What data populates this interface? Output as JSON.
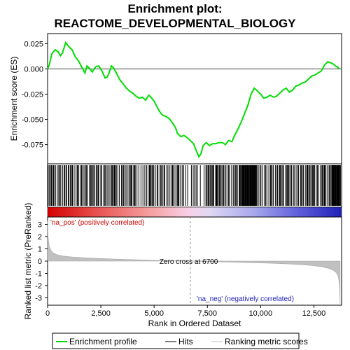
{
  "title_line1": "Enrichment plot:",
  "title_line2": "REACTOME_DEVELOPMENTAL_BIOLOGY",
  "chart_data": {
    "type": "line",
    "x_range": [
      0,
      13800
    ],
    "x_ticks": [
      0,
      2500,
      5000,
      7500,
      10000,
      12500
    ],
    "x_tick_labels": [
      "0",
      "2,500",
      "5,000",
      "7,500",
      "10,000",
      "12,500"
    ],
    "xlabel": "Rank in Ordered Dataset",
    "es_panel": {
      "ylabel": "Enrichment score (ES)",
      "ylim": [
        -0.094,
        0.035
      ],
      "y_ticks": [
        0.025,
        0.0,
        -0.025,
        -0.05,
        -0.075
      ],
      "y_tick_labels": [
        "0.025",
        "0.000",
        "-0.025",
        "-0.050",
        "-0.075"
      ],
      "series": [
        {
          "name": "Enrichment profile",
          "color": "#00dd00",
          "x": [
            0,
            80,
            200,
            350,
            500,
            600,
            700,
            850,
            1000,
            1150,
            1300,
            1450,
            1600,
            1750,
            1850,
            1950,
            2100,
            2250,
            2400,
            2550,
            2700,
            2800,
            2900,
            3000,
            3100,
            3250,
            3400,
            3550,
            3700,
            3850,
            4000,
            4150,
            4300,
            4450,
            4600,
            4750,
            4850,
            5000,
            5100,
            5250,
            5400,
            5550,
            5700,
            5850,
            6000,
            6100,
            6250,
            6400,
            6550,
            6700,
            6850,
            7000,
            7100,
            7200,
            7300,
            7450,
            7600,
            7750,
            7900,
            8050,
            8200,
            8350,
            8500,
            8650,
            8800,
            8950,
            9100,
            9250,
            9400,
            9550,
            9700,
            9850,
            10000,
            10150,
            10300,
            10450,
            10600,
            10750,
            10900,
            11050,
            11200,
            11350,
            11500,
            11650,
            11800,
            11950,
            12100,
            12250,
            12400,
            12550,
            12700,
            12850,
            13000,
            13150,
            13300,
            13400,
            13500,
            13600,
            13700
          ],
          "y": [
            0.0,
            0.004,
            0.015,
            0.019,
            0.017,
            0.013,
            0.016,
            0.026,
            0.022,
            0.019,
            0.012,
            0.008,
            0.002,
            -0.004,
            0.003,
            0.001,
            -0.003,
            0.002,
            0.003,
            -0.002,
            -0.009,
            -0.008,
            -0.003,
            0.003,
            0.001,
            -0.005,
            -0.011,
            -0.015,
            -0.019,
            -0.022,
            -0.024,
            -0.027,
            -0.029,
            -0.028,
            -0.031,
            -0.026,
            -0.028,
            -0.032,
            -0.036,
            -0.042,
            -0.046,
            -0.047,
            -0.049,
            -0.053,
            -0.058,
            -0.064,
            -0.067,
            -0.066,
            -0.068,
            -0.071,
            -0.074,
            -0.082,
            -0.087,
            -0.084,
            -0.076,
            -0.073,
            -0.076,
            -0.074,
            -0.074,
            -0.073,
            -0.073,
            -0.075,
            -0.071,
            -0.072,
            -0.065,
            -0.059,
            -0.052,
            -0.044,
            -0.036,
            -0.025,
            -0.019,
            -0.022,
            -0.025,
            -0.029,
            -0.028,
            -0.026,
            -0.028,
            -0.027,
            -0.024,
            -0.021,
            -0.019,
            -0.023,
            -0.021,
            -0.017,
            -0.016,
            -0.014,
            -0.013,
            -0.01,
            -0.007,
            -0.006,
            -0.004,
            -0.002,
            0.004,
            0.007,
            0.006,
            0.005,
            0.003,
            0.002,
            0.0
          ]
        }
      ]
    },
    "hits_panel": {
      "name": "Hits",
      "gradient_labels": [
        "'na_pos' (positively correlated)",
        "'na_neg' (negatively correlated)"
      ]
    },
    "metric_panel": {
      "name": "Ranking metric scores",
      "ylabel": "Ranked list metric (PreRanked)",
      "ylim": [
        -3.6,
        3.6
      ],
      "y_ticks": [
        3,
        2,
        1,
        0,
        -1,
        -2,
        -3
      ],
      "y_tick_labels": [
        "3",
        "2",
        "1",
        "0",
        "-1",
        "-2",
        "-3"
      ],
      "zero_cross_rank": 6700,
      "zero_cross_label": "Zero cross at 6700",
      "x": [
        0,
        30,
        80,
        150,
        250,
        400,
        600,
        900,
        1300,
        2000,
        3000,
        4000,
        5000,
        6000,
        6700,
        7500,
        8500,
        9500,
        10500,
        11500,
        12000,
        12500,
        12900,
        13200,
        13400,
        13550,
        13650,
        13700,
        13730
      ],
      "y": [
        3.3,
        1.9,
        1.2,
        0.9,
        0.7,
        0.55,
        0.45,
        0.38,
        0.32,
        0.25,
        0.18,
        0.12,
        0.07,
        0.03,
        0.0,
        -0.04,
        -0.08,
        -0.13,
        -0.18,
        -0.25,
        -0.3,
        -0.38,
        -0.48,
        -0.6,
        -0.75,
        -0.95,
        -1.3,
        -2.0,
        -3.5
      ]
    },
    "legend": [
      {
        "name": "Enrichment profile",
        "color": "#00dd00"
      },
      {
        "name": "Hits",
        "color": "#000000"
      },
      {
        "name": "Ranking metric scores",
        "color": "#c0c0c0"
      }
    ]
  }
}
